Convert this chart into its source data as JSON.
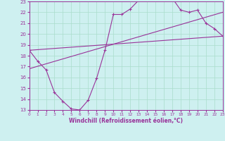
{
  "xlabel": "Windchill (Refroidissement éolien,°C)",
  "bg_color": "#cef0f0",
  "grid_color": "#aaddcc",
  "line_color": "#993399",
  "xlim": [
    0,
    23
  ],
  "ylim": [
    13,
    23
  ],
  "xticks": [
    0,
    1,
    2,
    3,
    4,
    5,
    6,
    7,
    8,
    9,
    10,
    11,
    12,
    13,
    14,
    15,
    16,
    17,
    18,
    19,
    20,
    21,
    22,
    23
  ],
  "yticks": [
    13,
    14,
    15,
    16,
    17,
    18,
    19,
    20,
    21,
    22,
    23
  ],
  "curve_x": [
    0,
    1,
    2,
    3,
    4,
    5,
    6,
    7,
    8,
    9,
    10,
    11,
    12,
    13,
    14,
    15,
    16,
    17,
    18,
    19,
    20,
    21,
    22,
    23
  ],
  "curve_y": [
    18.5,
    17.5,
    16.7,
    14.6,
    13.8,
    13.1,
    13.0,
    13.9,
    15.9,
    18.5,
    21.8,
    21.8,
    22.3,
    23.1,
    23.4,
    23.3,
    23.1,
    23.3,
    22.2,
    22.0,
    22.2,
    21.0,
    20.5,
    19.8
  ],
  "line1_x": [
    0,
    23
  ],
  "line1_y": [
    16.8,
    22.0
  ],
  "line2_x": [
    0,
    23
  ],
  "line2_y": [
    18.5,
    19.8
  ]
}
